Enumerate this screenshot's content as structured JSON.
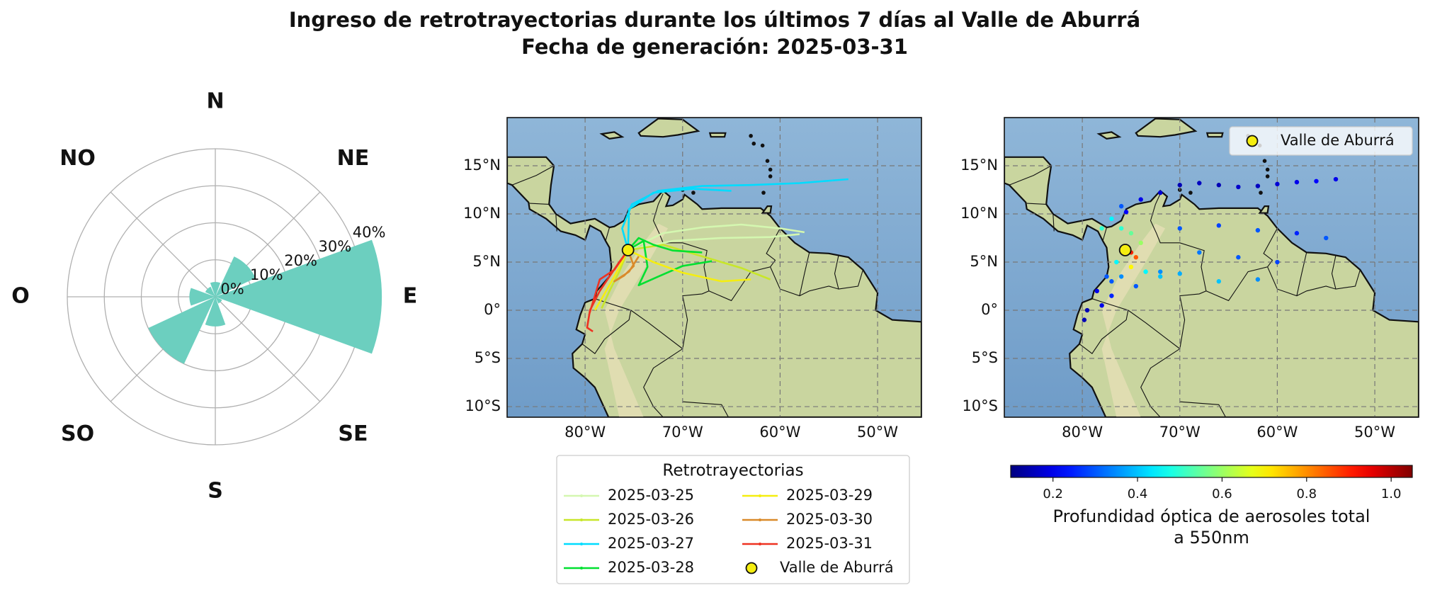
{
  "title_lines": [
    "Ingreso de retrotrayectorias durante los últimos 7 días al Valle de Aburrá",
    "Fecha de generación: 2025-03-31"
  ],
  "chart_data": [
    {
      "type": "polar_bar",
      "directions": [
        "N",
        "NE",
        "E",
        "SE",
        "S",
        "SO",
        "O",
        "NO"
      ],
      "values": [
        4,
        12,
        45,
        2,
        8,
        20,
        7,
        3
      ],
      "color": "#6ccfbf",
      "rlim": [
        0,
        40
      ],
      "rticks": [
        {
          "value": 0,
          "label": "0%"
        },
        {
          "value": 10,
          "label": "10%"
        },
        {
          "value": 20,
          "label": "20%"
        },
        {
          "value": 30,
          "label": "30%"
        },
        {
          "value": 40,
          "label": "40%"
        }
      ],
      "grid": true
    },
    {
      "type": "trajectory",
      "xlim": [
        -88,
        -45.5
      ],
      "ylim": [
        -11.1,
        20
      ],
      "xticks": [
        {
          "value": -80,
          "label": "80°W"
        },
        {
          "value": -70,
          "label": "70°W"
        },
        {
          "value": -60,
          "label": "60°W"
        },
        {
          "value": -50,
          "label": "50°W"
        }
      ],
      "yticks": [
        {
          "value": 15,
          "label": "15°N"
        },
        {
          "value": 10,
          "label": "10°N"
        },
        {
          "value": 5,
          "label": "5°N"
        },
        {
          "value": 0,
          "label": "0°"
        },
        {
          "value": -5,
          "label": "5°S"
        },
        {
          "value": -10,
          "label": "10°S"
        }
      ],
      "grid": true,
      "legend_title": "Retrotrayectorias",
      "series": [
        {
          "name": "2025-03-25",
          "color": "#d4f7b0",
          "x": [
            -75.6,
            -72,
            -68,
            -64,
            -60,
            -57.5,
            null,
            -75.6,
            -71,
            -66,
            -61,
            -58
          ],
          "y": [
            6.25,
            8,
            8.6,
            8.9,
            8.5,
            8.1,
            null,
            6.25,
            7.2,
            7.5,
            7.6,
            7.9
          ]
        },
        {
          "name": "2025-03-26",
          "color": "#c8e62a",
          "x": [
            -75.6,
            -72,
            -68,
            -64,
            -61,
            null,
            -75.6,
            -76.5,
            -77.5,
            -78.3
          ],
          "y": [
            6.25,
            6.8,
            5.6,
            4.4,
            3.2,
            null,
            6.25,
            4,
            2,
            0.2
          ]
        },
        {
          "name": "2025-03-27",
          "color": "#00dcff",
          "x": [
            -75.6,
            -76.2,
            -75.2,
            -72.5,
            -68,
            -63,
            -58,
            -53,
            null,
            -75.6,
            -75.5,
            -73,
            -69,
            -65
          ],
          "y": [
            6.25,
            8.5,
            11,
            12.4,
            12.9,
            13,
            13.2,
            13.6,
            null,
            6.25,
            10.5,
            12.2,
            12.6,
            12.4
          ]
        },
        {
          "name": "2025-03-28",
          "color": "#00e030",
          "x": [
            -75.6,
            -74,
            -73.6,
            -74.5,
            -72.5,
            -70,
            -67,
            null,
            -75.6,
            -74.5,
            -73,
            -71,
            -68
          ],
          "y": [
            6.25,
            7.2,
            4.5,
            2.6,
            3.5,
            4.6,
            5.1,
            null,
            6.25,
            7.5,
            6.8,
            6.2,
            6
          ]
        },
        {
          "name": "2025-03-29",
          "color": "#f5ee10",
          "x": [
            -75.6,
            -73,
            -70,
            -66,
            -63,
            null,
            -75.6,
            -77,
            -78.3,
            -79
          ],
          "y": [
            6.25,
            5,
            3.9,
            3,
            3.2,
            null,
            6.25,
            3.5,
            1.2,
            0
          ]
        },
        {
          "name": "2025-03-30",
          "color": "#d98a2a",
          "x": [
            -75.6,
            -75,
            -76,
            -77,
            -75.5,
            -74.5
          ],
          "y": [
            6.25,
            4.6,
            3.6,
            3,
            4,
            5.6
          ]
        },
        {
          "name": "2025-03-31",
          "color": "#ee3322",
          "x": [
            -75.6,
            -76.5,
            -77.5,
            -78.5,
            -79.5,
            -79.8,
            -79.2,
            null,
            -75.6,
            -77,
            -78.5,
            -79,
            -79.6
          ],
          "y": [
            6.25,
            5,
            3.5,
            2,
            0,
            -1.8,
            -2.2,
            null,
            6.25,
            4.2,
            3.2,
            1.5,
            -0.5
          ]
        }
      ],
      "point": {
        "name": "Valle de Aburrá",
        "x": -75.6,
        "y": 6.25,
        "color": "#f5ee10"
      }
    },
    {
      "type": "scatter",
      "xlim": [
        -88,
        -45.5
      ],
      "ylim": [
        -11.1,
        20
      ],
      "xticks": [
        {
          "value": -80,
          "label": "80°W"
        },
        {
          "value": -70,
          "label": "70°W"
        },
        {
          "value": -60,
          "label": "60°W"
        },
        {
          "value": -50,
          "label": "50°W"
        }
      ],
      "yticks": [
        {
          "value": 15,
          "label": "15°N"
        },
        {
          "value": 10,
          "label": "10°N"
        },
        {
          "value": 5,
          "label": "5°N"
        },
        {
          "value": 0,
          "label": "0°"
        },
        {
          "value": -5,
          "label": "5°S"
        },
        {
          "value": -10,
          "label": "10°S"
        }
      ],
      "grid": true,
      "x": [
        -70,
        -68,
        -66,
        -64,
        -62,
        -60,
        -58,
        -56,
        -54,
        -72,
        -74,
        -75.5,
        -70,
        -66,
        -62,
        -58,
        -55,
        -68,
        -64,
        -60,
        -62,
        -66,
        -70,
        -72,
        -73.5,
        -74.5,
        -72,
        -74,
        -75,
        -76,
        -75,
        -76,
        -77,
        -74.5,
        -75,
        -76.5,
        -77.5,
        -78.5,
        -79.5,
        -79.8,
        -78,
        -77,
        -76,
        -77,
        -78
      ],
      "y": [
        13,
        13.2,
        13,
        12.8,
        12.9,
        13.1,
        13.3,
        13.4,
        13.6,
        12.2,
        11.5,
        10.2,
        8.5,
        8.8,
        8.3,
        8,
        7.5,
        6,
        5.5,
        5,
        3.2,
        3,
        3.8,
        4,
        4,
        2.5,
        3.5,
        7,
        8,
        8.5,
        4.5,
        3.5,
        3,
        5.5,
        6,
        5,
        3.5,
        2,
        0,
        -1,
        0.5,
        1.5,
        10.8,
        9.5,
        8.5
      ],
      "values": [
        0.15,
        0.16,
        0.15,
        0.17,
        0.16,
        0.18,
        0.2,
        0.22,
        0.2,
        0.18,
        0.2,
        0.22,
        0.3,
        0.28,
        0.3,
        0.25,
        0.3,
        0.33,
        0.3,
        0.28,
        0.35,
        0.4,
        0.38,
        0.35,
        0.45,
        0.3,
        0.4,
        0.6,
        0.55,
        0.5,
        0.7,
        0.35,
        0.3,
        0.85,
        0.9,
        0.45,
        0.3,
        0.2,
        0.15,
        0.15,
        0.2,
        0.25,
        0.3,
        0.45,
        0.5
      ],
      "colormap": "jet",
      "clim": [
        0.1,
        1.05
      ],
      "cticks": [
        0.2,
        0.4,
        0.6,
        0.8,
        {
          "value": 1,
          "label": "1.0"
        }
      ],
      "colorbar_label": [
        "Profundidad óptica de aerosoles total",
        "a 550nm"
      ],
      "point": {
        "name": "Valle de Aburrá",
        "x": -75.6,
        "y": 6.25,
        "color": "#f5ee10"
      }
    }
  ]
}
